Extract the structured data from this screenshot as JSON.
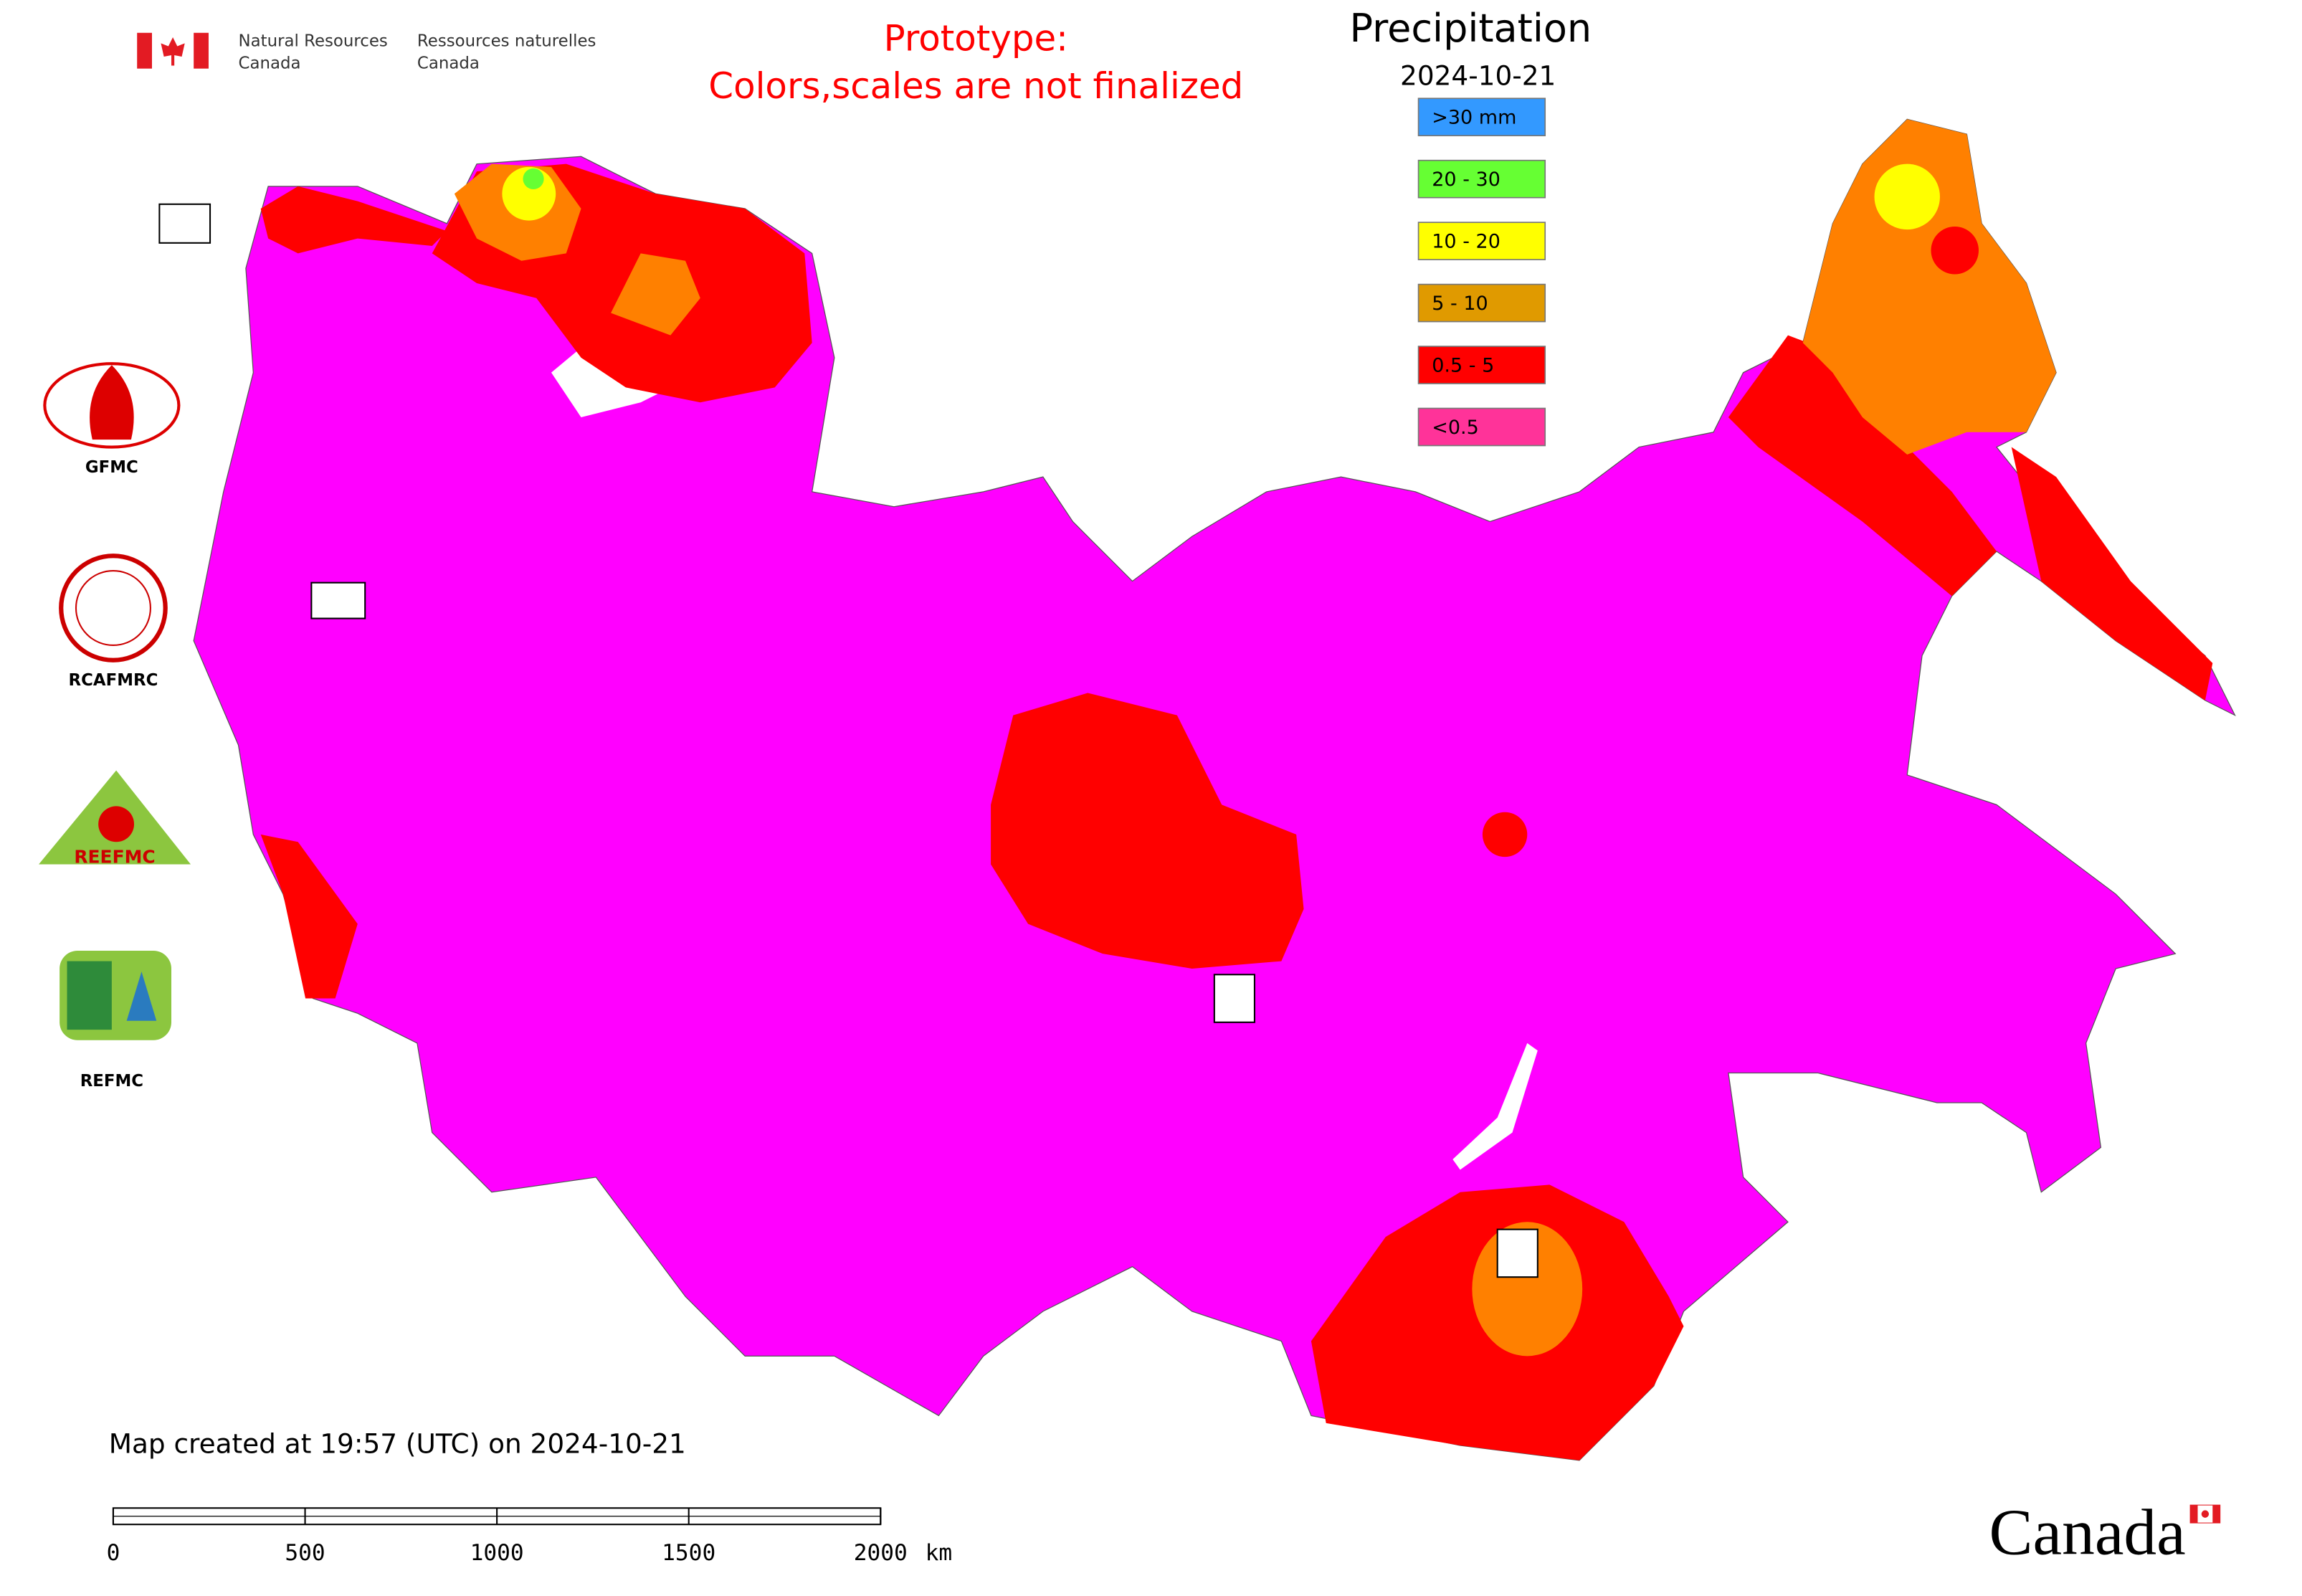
{
  "header": {
    "agency_en": [
      "Natural Resources",
      "Canada"
    ],
    "agency_fr": [
      "Ressources naturelles",
      "Canada"
    ],
    "notice": [
      "Prototype:",
      "Colors,scales are not finalized"
    ]
  },
  "legend": {
    "title": "Precipitation",
    "date": "2024-10-21",
    "items": [
      {
        "label": ">30 mm",
        "color": "#3399ff"
      },
      {
        "label": "20 - 30",
        "color": "#66ff33"
      },
      {
        "label": "10 - 20",
        "color": "#ffff00"
      },
      {
        "label": "5 - 10",
        "color": "#e09a00"
      },
      {
        "label": "0.5 - 5",
        "color": "#ff0000"
      },
      {
        "label": "<0.5",
        "color": "#ff3399"
      }
    ]
  },
  "logos": [
    "GFMC",
    "RCAFMRC",
    "REEFMC",
    "REFMC"
  ],
  "footer": {
    "created": "Map created at 19:57 (UTC) on 2024-10-21",
    "wordmark": "Canada"
  },
  "scale_bar": {
    "labels": [
      "0",
      "500",
      "1000",
      "1500",
      "2000"
    ],
    "unit": "km"
  }
}
